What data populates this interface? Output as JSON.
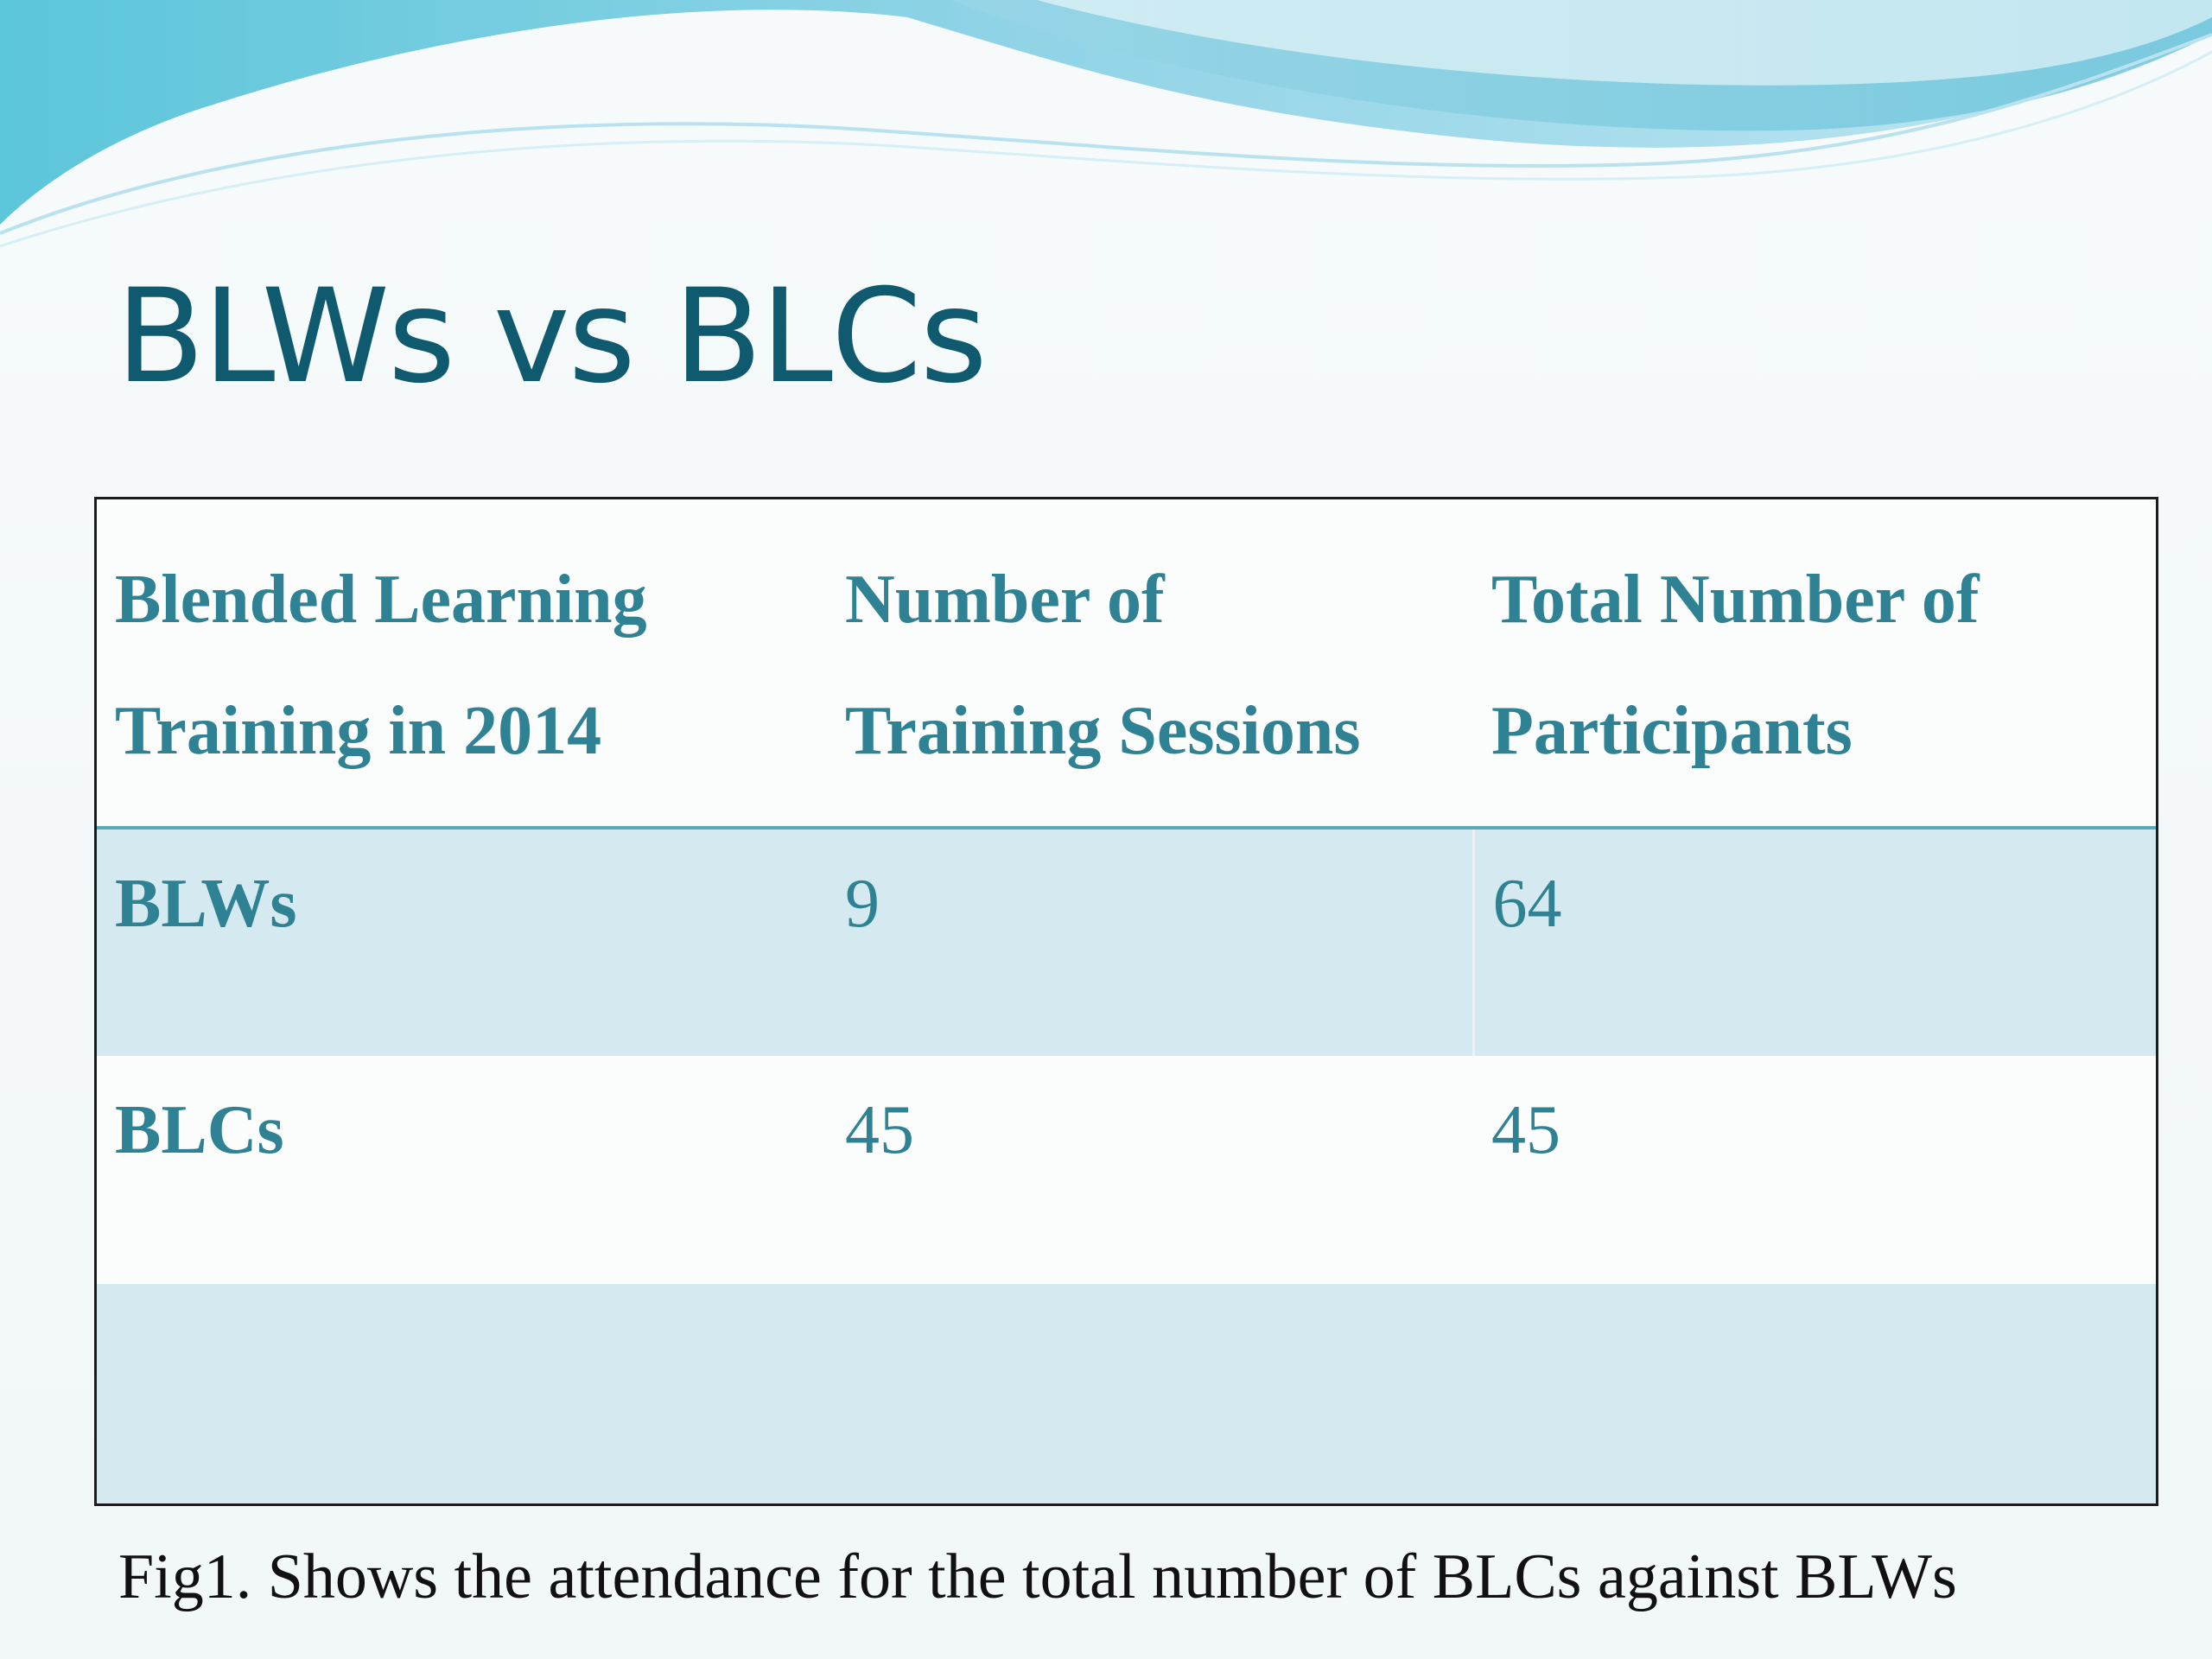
{
  "slide": {
    "title": "BLWs vs BLCs",
    "colors": {
      "title": "#0f5a6e",
      "table_text": "#2f8293",
      "band": "#d4eaf0",
      "wave_dark": "#4fb6cf",
      "wave_light": "#a9dff0"
    },
    "table": {
      "headers": [
        [
          "Blended Learning",
          "Training in 2014"
        ],
        [
          "Number of",
          "Training Sessions"
        ],
        [
          "Total Number of",
          "Participants"
        ]
      ],
      "rows": [
        {
          "label": "BLWs",
          "sessions": "9",
          "participants": "64"
        },
        {
          "label": "BLCs",
          "sessions": "45",
          "participants": "45"
        }
      ]
    },
    "caption": "Fig1. Shows the attendance for the total number of BLCs against BLWs"
  }
}
